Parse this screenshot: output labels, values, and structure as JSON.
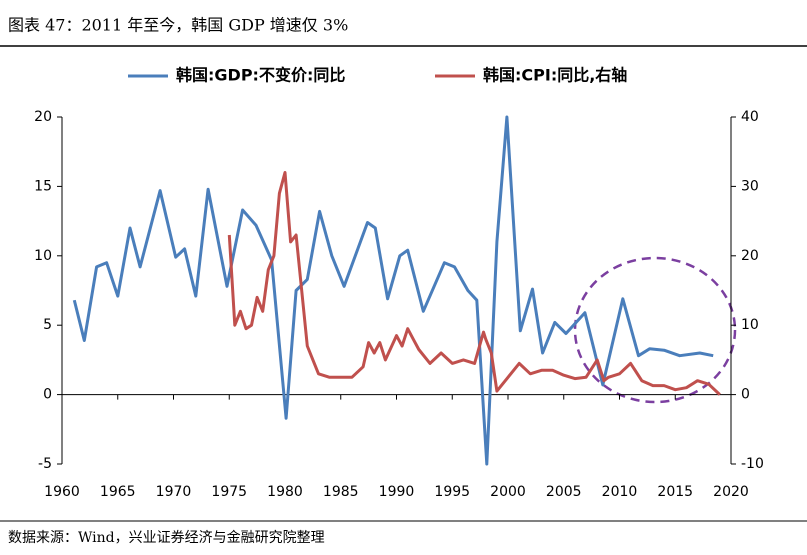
{
  "chart_data": {
    "type": "line",
    "title": "图表 47：2011 年至今，韩国 GDP 增速仅 3%",
    "source": "数据来源：Wind，兴业证券经济与金融研究院整理",
    "xlim": [
      1960,
      2020
    ],
    "xticks": [
      1960,
      1965,
      1970,
      1975,
      1980,
      1985,
      1990,
      1995,
      2000,
      2005,
      2010,
      2015,
      2020
    ],
    "ylim": [
      -5,
      20
    ],
    "yticks": [
      -5,
      0,
      5,
      10,
      15,
      20
    ],
    "y2lim": [
      -10,
      40
    ],
    "y2ticks": [
      -10,
      0,
      10,
      20,
      30,
      40
    ],
    "legend": "top",
    "series": [
      {
        "name": "韩国:GDP:不变价:同比",
        "color": "#4a7ebb",
        "x": [
          1961.1,
          1962,
          1963.1,
          1964,
          1965,
          1966.1,
          1967,
          1968.8,
          1970.2,
          1971,
          1972,
          1973.1,
          1974.8,
          1976.2,
          1977.4,
          1978.8,
          1980.1,
          1981,
          1982,
          1983.1,
          1984.2,
          1985.3,
          1987.4,
          1988.1,
          1989.2,
          1990.3,
          1991,
          1992.4,
          1994.3,
          1995.2,
          1996.4,
          1997.2,
          1998.1,
          1999,
          1999.9,
          2001.1,
          2002.2,
          2003.1,
          2004.2,
          2005.2,
          2006.9,
          2008.5,
          2010.3,
          2011.7,
          2012.7,
          2014,
          2015.4,
          2017.2,
          2018.4
        ],
        "values": [
          6.8,
          3.9,
          9.2,
          9.5,
          7.1,
          12,
          9.2,
          14.7,
          9.9,
          10.5,
          7.1,
          14.8,
          7.8,
          13.3,
          12.2,
          9.7,
          -1.7,
          7.5,
          8.3,
          13.2,
          10,
          7.8,
          12.4,
          12,
          6.9,
          10,
          10.4,
          6,
          9.5,
          9.2,
          7.5,
          6.8,
          -5,
          11,
          20,
          4.6,
          7.6,
          3,
          5.2,
          4.4,
          5.9,
          0.7,
          6.9,
          2.8,
          3.3,
          3.2,
          2.8,
          3,
          2.8
        ]
      },
      {
        "name": "韩国:CPI:同比,右轴",
        "color": "#c0504d",
        "axis": "y2",
        "x": [
          1975,
          1975.5,
          1976,
          1976.5,
          1977,
          1977.5,
          1978,
          1978.5,
          1979,
          1979.5,
          1980,
          1980.5,
          1981,
          1981.5,
          1982,
          1982.5,
          1983,
          1984,
          1985,
          1986,
          1987,
          1987.5,
          1988,
          1988.5,
          1989,
          1990,
          1990.5,
          1991,
          1991.5,
          1992,
          1993,
          1994,
          1995,
          1996,
          1997,
          1997.8,
          1998,
          1998.5,
          1999,
          2000,
          2001,
          2002,
          2003,
          2004,
          2005,
          2006,
          2007,
          2008,
          2008.6,
          2009,
          2010,
          2011,
          2012,
          2013,
          2014,
          2015,
          2016,
          2017,
          2018,
          2019
        ],
        "values": [
          23,
          10,
          12,
          9.5,
          10,
          14,
          12,
          18,
          20,
          29,
          32,
          22,
          23,
          15,
          7,
          5,
          3,
          2.5,
          2.5,
          2.5,
          4,
          7.5,
          6,
          7.5,
          5,
          8.5,
          7,
          9.5,
          8,
          6.5,
          4.5,
          6,
          4.5,
          5,
          4.5,
          9,
          8,
          6,
          0.5,
          2.5,
          4.5,
          3,
          3.5,
          3.5,
          2.8,
          2.3,
          2.5,
          5,
          2,
          2.5,
          3,
          4.5,
          2,
          1.3,
          1.3,
          0.7,
          1,
          2,
          1.5,
          0
        ]
      }
    ]
  }
}
